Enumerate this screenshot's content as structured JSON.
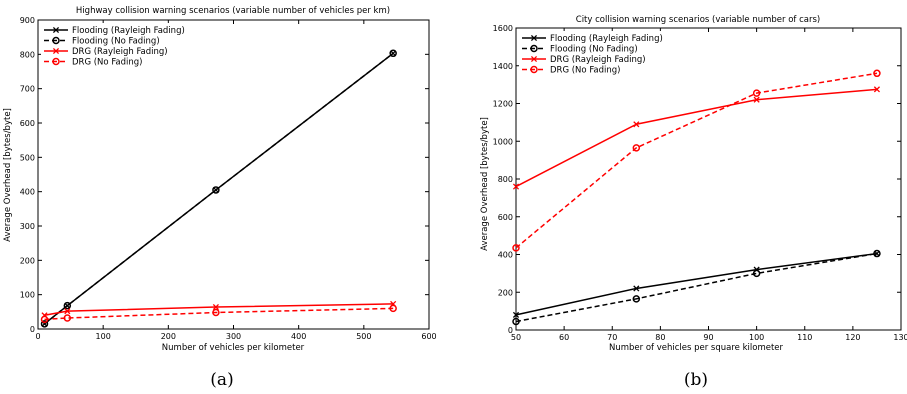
{
  "chart_data": [
    {
      "type": "line",
      "title": "Highway collision warning scenarios (variable number of vehicles per km)",
      "xlabel": "Number of vehicles per kilometer",
      "ylabel": "Average Overhead [bytes/byte]",
      "xlim": [
        0,
        600
      ],
      "ylim": [
        0,
        900
      ],
      "xticks": [
        0,
        100,
        200,
        300,
        400,
        500,
        600
      ],
      "yticks": [
        0,
        100,
        200,
        300,
        400,
        500,
        600,
        700,
        800,
        900
      ],
      "legend_position": "top-left",
      "caption": "(a)",
      "series": [
        {
          "name": "Flooding (Rayleigh Fading)",
          "color": "#000000",
          "dash": "solid",
          "marker": "x",
          "x": [
            10,
            45,
            273,
            545
          ],
          "y": [
            15,
            68,
            405,
            803
          ]
        },
        {
          "name": "Flooding (No Fading)",
          "color": "#000000",
          "dash": "dashed",
          "marker": "o",
          "x": [
            10,
            45,
            273,
            545
          ],
          "y": [
            15,
            68,
            405,
            803
          ]
        },
        {
          "name": "DRG (Rayleigh Fading)",
          "color": "#ff0000",
          "dash": "solid",
          "marker": "x",
          "x": [
            10,
            45,
            273,
            545
          ],
          "y": [
            40,
            52,
            64,
            73
          ]
        },
        {
          "name": "DRG (No Fading)",
          "color": "#ff0000",
          "dash": "dashed",
          "marker": "o",
          "x": [
            10,
            45,
            273,
            545
          ],
          "y": [
            28,
            32,
            48,
            60
          ]
        }
      ]
    },
    {
      "type": "line",
      "title": "City collision warning scenarios (variable number of cars)",
      "xlabel": "Number of vehicles per square kilometer",
      "ylabel": "Average Overhead [bytes/byte]",
      "xlim": [
        50,
        130
      ],
      "ylim": [
        0,
        1600
      ],
      "xticks": [
        50,
        60,
        70,
        80,
        90,
        100,
        110,
        120,
        130
      ],
      "yticks": [
        0,
        200,
        400,
        600,
        800,
        1000,
        1200,
        1400,
        1600
      ],
      "legend_position": "top-left",
      "caption": "(b)",
      "series": [
        {
          "name": "Flooding (Rayleigh Fading)",
          "color": "#000000",
          "dash": "solid",
          "marker": "x",
          "x": [
            50,
            75,
            100,
            125
          ],
          "y": [
            80,
            220,
            320,
            405
          ]
        },
        {
          "name": "Flooding (No Fading)",
          "color": "#000000",
          "dash": "dashed",
          "marker": "o",
          "x": [
            50,
            75,
            100,
            125
          ],
          "y": [
            45,
            165,
            300,
            405
          ]
        },
        {
          "name": "DRG (Rayleigh Fading)",
          "color": "#ff0000",
          "dash": "solid",
          "marker": "x",
          "x": [
            50,
            75,
            100,
            125
          ],
          "y": [
            760,
            1090,
            1220,
            1275
          ]
        },
        {
          "name": "DRG (No Fading)",
          "color": "#ff0000",
          "dash": "dashed",
          "marker": "o",
          "x": [
            50,
            75,
            100,
            125
          ],
          "y": [
            435,
            965,
            1255,
            1360
          ]
        }
      ]
    }
  ]
}
